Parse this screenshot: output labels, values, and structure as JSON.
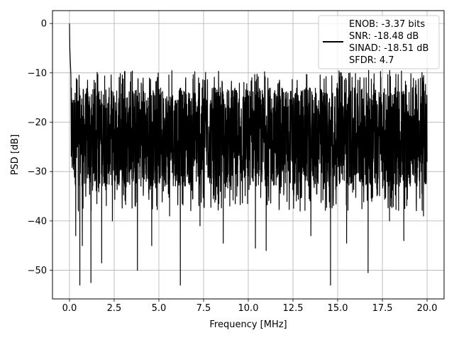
{
  "chart_data": {
    "type": "line",
    "title": "",
    "xlabel": "Frequency [MHz]",
    "ylabel": "PSD [dB]",
    "xlim": [
      -0.95,
      20.95
    ],
    "ylim": [
      -55.8,
      2.6
    ],
    "grid": true,
    "legend_placement": "top-right",
    "x_ticks": [
      0.0,
      2.5,
      5.0,
      7.5,
      10.0,
      12.5,
      15.0,
      17.5,
      20.0
    ],
    "x_tick_labels": [
      "0.0",
      "2.5",
      "5.0",
      "7.5",
      "10.0",
      "12.5",
      "15.0",
      "17.5",
      "20.0"
    ],
    "y_ticks": [
      0,
      -10,
      -20,
      -30,
      -40,
      -50
    ],
    "y_tick_labels": [
      "0",
      "−10",
      "−20",
      "−30",
      "−40",
      "−50"
    ],
    "legend": {
      "entries": [
        "ENOB: -3.37 bits",
        "SNR: -18.48 dB",
        "SINAD: -18.51 dB",
        "SFDR: 4.7"
      ]
    },
    "series": [
      {
        "color": "#000000",
        "noise_floor_range_db": [
          -33,
          -13
        ],
        "noise_envelope_top_db": -9.5,
        "peaks": [
          {
            "x": 0.0,
            "y": 0.0
          },
          {
            "x": 0.02,
            "y": -5.0
          },
          {
            "x": 0.05,
            "y": -8.0
          },
          {
            "x": 0.08,
            "y": -10.5
          }
        ],
        "dips": [
          {
            "x": 0.35,
            "y": -43.0
          },
          {
            "x": 0.5,
            "y": -38.0
          },
          {
            "x": 0.58,
            "y": -53.0
          },
          {
            "x": 0.72,
            "y": -45.0
          },
          {
            "x": 1.2,
            "y": -52.5
          },
          {
            "x": 1.8,
            "y": -48.5
          },
          {
            "x": 2.4,
            "y": -40.0
          },
          {
            "x": 3.8,
            "y": -50.0
          },
          {
            "x": 4.6,
            "y": -45.0
          },
          {
            "x": 5.6,
            "y": -39.0
          },
          {
            "x": 6.2,
            "y": -53.0
          },
          {
            "x": 7.3,
            "y": -41.0
          },
          {
            "x": 8.6,
            "y": -44.5
          },
          {
            "x": 10.4,
            "y": -45.5
          },
          {
            "x": 11.0,
            "y": -46.0
          },
          {
            "x": 12.9,
            "y": -38.0
          },
          {
            "x": 13.5,
            "y": -43.0
          },
          {
            "x": 14.6,
            "y": -53.0
          },
          {
            "x": 15.5,
            "y": -44.5
          },
          {
            "x": 16.7,
            "y": -50.5
          },
          {
            "x": 17.9,
            "y": -40.0
          },
          {
            "x": 18.7,
            "y": -44.0
          },
          {
            "x": 19.8,
            "y": -39.0
          }
        ],
        "x_start": 0.0,
        "x_end": 20.0
      }
    ]
  }
}
